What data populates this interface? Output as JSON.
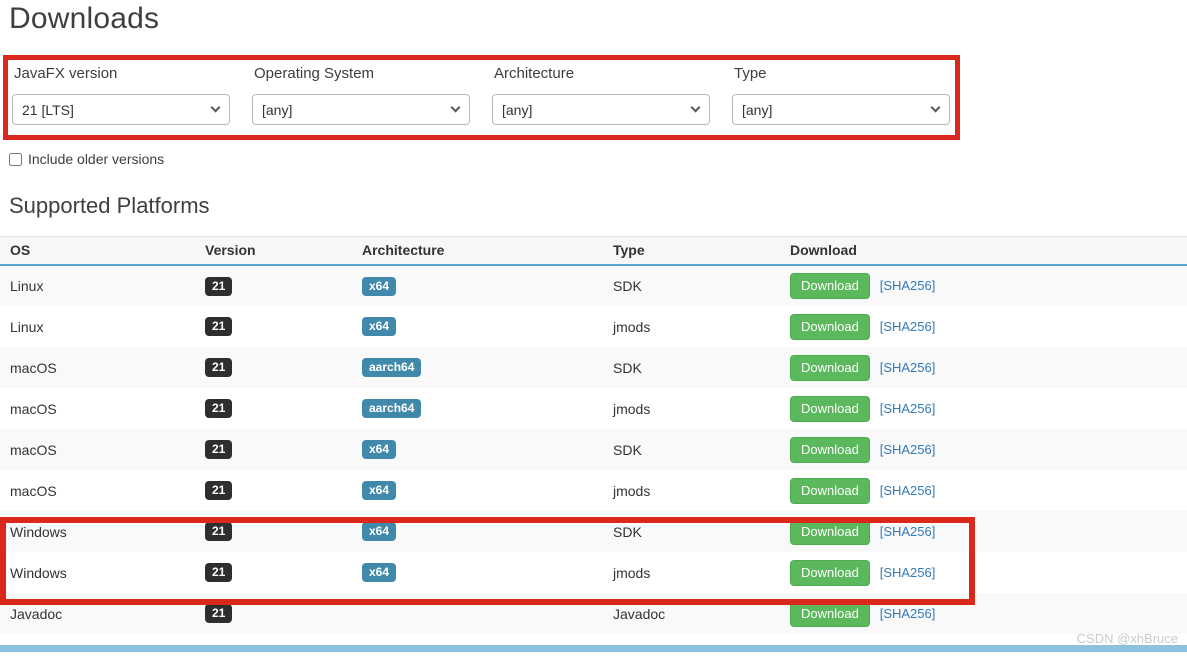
{
  "page": {
    "title": "Downloads"
  },
  "filters": {
    "groups": [
      {
        "label": "JavaFX version",
        "value": "21 [LTS]"
      },
      {
        "label": "Operating System",
        "value": "[any]"
      },
      {
        "label": "Architecture",
        "value": "[any]"
      },
      {
        "label": "Type",
        "value": "[any]"
      }
    ],
    "include_older_label": "Include older versions",
    "include_older_checked": false
  },
  "platforms": {
    "heading": "Supported Platforms",
    "columns": [
      "OS",
      "Version",
      "Architecture",
      "Type",
      "Download"
    ],
    "download_button_label": "Download",
    "sha_link_label": "[SHA256]",
    "rows": [
      {
        "os": "Linux",
        "version": "21",
        "arch": "x64",
        "type": "SDK"
      },
      {
        "os": "Linux",
        "version": "21",
        "arch": "x64",
        "type": "jmods"
      },
      {
        "os": "macOS",
        "version": "21",
        "arch": "aarch64",
        "type": "SDK"
      },
      {
        "os": "macOS",
        "version": "21",
        "arch": "aarch64",
        "type": "jmods"
      },
      {
        "os": "macOS",
        "version": "21",
        "arch": "x64",
        "type": "SDK"
      },
      {
        "os": "macOS",
        "version": "21",
        "arch": "x64",
        "type": "jmods"
      },
      {
        "os": "Windows",
        "version": "21",
        "arch": "x64",
        "type": "SDK"
      },
      {
        "os": "Windows",
        "version": "21",
        "arch": "x64",
        "type": "jmods"
      },
      {
        "os": "Javadoc",
        "version": "21",
        "arch": null,
        "type": "Javadoc"
      }
    ]
  },
  "watermark": "CSDN @xhBruce",
  "colors": {
    "annotation_red": "#da291c",
    "rule_blue": "#58a6cb",
    "footer_blue": "#8ac2e0",
    "badge_dark": "#2e2e2e",
    "badge_blue": "#4189ab",
    "button_green": "#5cb85c",
    "link_blue": "#337ab7"
  }
}
